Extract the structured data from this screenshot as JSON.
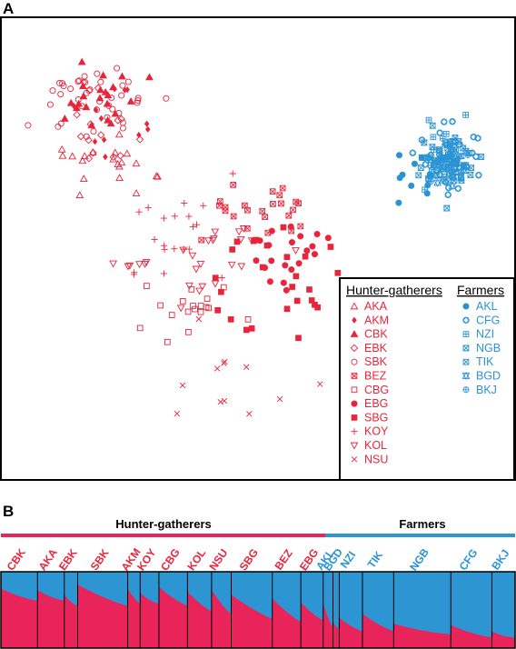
{
  "panel_a_label": "A",
  "panel_b_label": "B",
  "colors": {
    "hunter": "#e8253b",
    "farmer": "#2a93d5",
    "bar_red": "#e8245a",
    "bar_blue": "#2e95d3"
  },
  "chart_data": [
    {
      "type": "scatter",
      "title": "",
      "xlabel": "",
      "ylabel": "",
      "grid": false,
      "legend_position": "bottom-right",
      "legend": {
        "hunter_title": "Hunter-gatherers",
        "farmer_title": "Farmers",
        "hunter": [
          {
            "code": "AKA",
            "marker": "triangle-up-open"
          },
          {
            "code": "AKM",
            "marker": "diamond-filled"
          },
          {
            "code": "CBK",
            "marker": "triangle-up-filled"
          },
          {
            "code": "EBK",
            "marker": "diamond-open"
          },
          {
            "code": "SBK",
            "marker": "circle-open"
          },
          {
            "code": "BEZ",
            "marker": "square-x"
          },
          {
            "code": "CBG",
            "marker": "square-open"
          },
          {
            "code": "EBG",
            "marker": "circle-filled"
          },
          {
            "code": "SBG",
            "marker": "square-filled"
          },
          {
            "code": "KOY",
            "marker": "plus"
          },
          {
            "code": "KOL",
            "marker": "triangle-down-open"
          },
          {
            "code": "NSU",
            "marker": "x"
          }
        ],
        "farmer": [
          {
            "code": "AKL",
            "marker": "circle-filled"
          },
          {
            "code": "CFG",
            "marker": "circle-diamond"
          },
          {
            "code": "NZI",
            "marker": "square-plus"
          },
          {
            "code": "NGB",
            "marker": "square-hourglass"
          },
          {
            "code": "TIK",
            "marker": "square-x"
          },
          {
            "code": "BGD",
            "marker": "star-of-david"
          },
          {
            "code": "BKJ",
            "marker": "circle-plus"
          }
        ]
      },
      "x_range": [
        0,
        100
      ],
      "y_range": [
        0,
        100
      ],
      "clusters": [
        {
          "pop": "SBK",
          "marker": "circle-open",
          "group": "hunter",
          "cx": 18,
          "cy": 84,
          "sx": 6,
          "sy": 4.5,
          "n": 40,
          "seed": 11
        },
        {
          "pop": "CBK",
          "marker": "triangle-up-filled",
          "group": "hunter",
          "cx": 19,
          "cy": 82,
          "sx": 4.5,
          "sy": 4,
          "n": 22,
          "seed": 12
        },
        {
          "pop": "AKM",
          "marker": "diamond-filled",
          "group": "hunter",
          "cx": 20,
          "cy": 80,
          "sx": 5,
          "sy": 5,
          "n": 12,
          "seed": 13
        },
        {
          "pop": "EBK",
          "marker": "diamond-open",
          "group": "hunter",
          "cx": 18,
          "cy": 76,
          "sx": 4,
          "sy": 5,
          "n": 14,
          "seed": 14
        },
        {
          "pop": "AKA",
          "marker": "triangle-up-open",
          "group": "hunter",
          "cx": 19,
          "cy": 69,
          "sx": 5,
          "sy": 3.5,
          "n": 20,
          "seed": 15
        },
        {
          "pop": "BEZ",
          "marker": "square-x",
          "group": "hunter",
          "cx": 50,
          "cy": 58,
          "sx": 6,
          "sy": 4,
          "n": 24,
          "seed": 16
        },
        {
          "pop": "EBG",
          "marker": "circle-filled",
          "group": "hunter",
          "cx": 57,
          "cy": 50,
          "sx": 4,
          "sy": 4,
          "n": 20,
          "seed": 17
        },
        {
          "pop": "SBG",
          "marker": "square-filled",
          "group": "hunter",
          "cx": 53,
          "cy": 45,
          "sx": 7,
          "sy": 7,
          "n": 26,
          "seed": 18
        },
        {
          "pop": "KOY",
          "marker": "plus",
          "group": "hunter",
          "cx": 35,
          "cy": 52,
          "sx": 6,
          "sy": 5,
          "n": 20,
          "seed": 19
        },
        {
          "pop": "KOL",
          "marker": "triangle-down-open",
          "group": "hunter",
          "cx": 37,
          "cy": 48,
          "sx": 8,
          "sy": 5,
          "n": 26,
          "seed": 20
        },
        {
          "pop": "CBG",
          "marker": "square-open",
          "group": "hunter",
          "cx": 36,
          "cy": 36,
          "sx": 5,
          "sy": 4,
          "n": 18,
          "seed": 21
        },
        {
          "pop": "NSU",
          "marker": "x",
          "group": "hunter",
          "cx": 38,
          "cy": 18,
          "sx": 12,
          "sy": 8,
          "n": 12,
          "seed": 22
        },
        {
          "pop": "AKL",
          "marker": "circle-filled",
          "group": "farmer",
          "cx": 82,
          "cy": 67,
          "sx": 3,
          "sy": 3,
          "n": 10,
          "seed": 31
        },
        {
          "pop": "CFG",
          "marker": "circle-diamond",
          "group": "farmer",
          "cx": 88,
          "cy": 70,
          "sx": 3.2,
          "sy": 3.6,
          "n": 40,
          "seed": 32
        },
        {
          "pop": "NZI",
          "marker": "square-plus",
          "group": "farmer",
          "cx": 87,
          "cy": 71,
          "sx": 3,
          "sy": 3.5,
          "n": 22,
          "seed": 33
        },
        {
          "pop": "NGB",
          "marker": "square-hourglass",
          "group": "farmer",
          "cx": 88,
          "cy": 69,
          "sx": 3.5,
          "sy": 3.5,
          "n": 36,
          "seed": 34
        },
        {
          "pop": "TIK",
          "marker": "square-x",
          "group": "farmer",
          "cx": 87,
          "cy": 69,
          "sx": 3,
          "sy": 3,
          "n": 18,
          "seed": 35
        },
        {
          "pop": "BGD",
          "marker": "star-of-david",
          "group": "farmer",
          "cx": 87,
          "cy": 66,
          "sx": 2.5,
          "sy": 3,
          "n": 14,
          "seed": 36
        },
        {
          "pop": "BKJ",
          "marker": "circle-plus",
          "group": "farmer",
          "cx": 90,
          "cy": 70,
          "sx": 3,
          "sy": 3.5,
          "n": 12,
          "seed": 37
        }
      ]
    },
    {
      "type": "bar",
      "title": "",
      "stacked": true,
      "ylim": [
        0,
        1
      ],
      "group_labels": {
        "hunter": "Hunter-gatherers",
        "farmer": "Farmers"
      },
      "hunter_fraction_of_width": 0.63,
      "series": [
        {
          "name": "",
          "color_key": "bar_red"
        },
        {
          "name": "",
          "color_key": "bar_blue"
        }
      ],
      "populations": [
        {
          "code": "CBK",
          "group": "hunter",
          "width": 41,
          "start": 0.78,
          "end": 0.62
        },
        {
          "code": "AKA",
          "group": "hunter",
          "width": 30,
          "start": 0.76,
          "end": 0.62
        },
        {
          "code": "EBK",
          "group": "hunter",
          "width": 15,
          "start": 0.7,
          "end": 0.55
        },
        {
          "code": "SBK",
          "group": "hunter",
          "width": 56,
          "start": 0.83,
          "end": 0.55
        },
        {
          "code": "AKM",
          "group": "hunter",
          "width": 14,
          "start": 0.78,
          "end": 0.58
        },
        {
          "code": "KOY",
          "group": "hunter",
          "width": 21,
          "start": 0.72,
          "end": 0.58
        },
        {
          "code": "CBG",
          "group": "hunter",
          "width": 32,
          "start": 0.8,
          "end": 0.55
        },
        {
          "code": "KOL",
          "group": "hunter",
          "width": 27,
          "start": 0.74,
          "end": 0.48
        },
        {
          "code": "NSU",
          "group": "hunter",
          "width": 22,
          "start": 0.76,
          "end": 0.44
        },
        {
          "code": "SBG",
          "group": "hunter",
          "width": 46,
          "start": 0.7,
          "end": 0.38
        },
        {
          "code": "BEZ",
          "group": "hunter",
          "width": 32,
          "start": 0.65,
          "end": 0.34
        },
        {
          "code": "EBG",
          "group": "hunter",
          "width": 25,
          "start": 0.6,
          "end": 0.36
        },
        {
          "code": "AKL",
          "group": "farmer",
          "width": 11,
          "start": 0.58,
          "end": 0.26
        },
        {
          "code": "BGD",
          "group": "farmer",
          "width": 7,
          "start": 0.34,
          "end": 0.26
        },
        {
          "code": "NZI",
          "group": "farmer",
          "width": 26,
          "start": 0.4,
          "end": 0.22
        },
        {
          "code": "TIK",
          "group": "farmer",
          "width": 35,
          "start": 0.45,
          "end": 0.22
        },
        {
          "code": "NGB",
          "group": "farmer",
          "width": 64,
          "start": 0.32,
          "end": 0.18
        },
        {
          "code": "CFG",
          "group": "farmer",
          "width": 46,
          "start": 0.3,
          "end": 0.14
        },
        {
          "code": "BKJ",
          "group": "farmer",
          "width": 26,
          "start": 0.22,
          "end": 0.14
        }
      ]
    }
  ]
}
